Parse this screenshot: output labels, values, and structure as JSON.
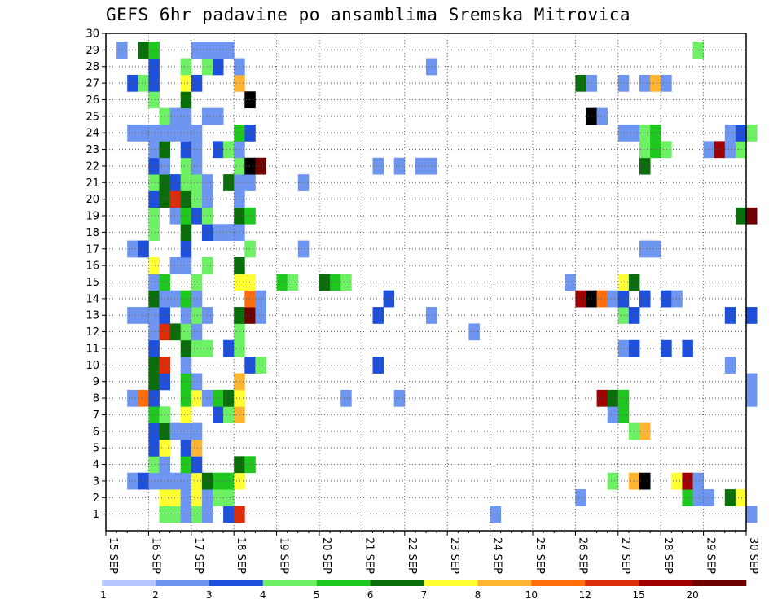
{
  "chart_data": {
    "type": "heatmap",
    "title": "GEFS 6hr padavine po ansamblima Sremska Mitrovica",
    "x_labels": [
      "15 SEP",
      "16 SEP",
      "17 SEP",
      "18 SEP",
      "19 SEP",
      "20 SEP",
      "21 SEP",
      "22 SEP",
      "23 SEP",
      "24 SEP",
      "25 SEP",
      "26 SEP",
      "27 SEP",
      "28 SEP",
      "29 SEP",
      "30 SEP"
    ],
    "y_labels": [
      "1",
      "2",
      "3",
      "4",
      "5",
      "6",
      "7",
      "8",
      "9",
      "10",
      "11",
      "12",
      "13",
      "14",
      "15",
      "16",
      "17",
      "18",
      "19",
      "20",
      "21",
      "22",
      "23",
      "24",
      "25",
      "26",
      "27",
      "28",
      "29",
      "30"
    ],
    "ylim": [
      0,
      30
    ],
    "grid": true,
    "time_steps_per_day": 4,
    "legend": {
      "placement": "bottom",
      "labels": [
        "1",
        "2",
        "3",
        "4",
        "5",
        "6",
        "7",
        "8",
        "10",
        "12",
        "15",
        "20"
      ],
      "colors": [
        "#b4c8ff",
        "#6e96f0",
        "#1e50dc",
        "#6ef064",
        "#1ec81e",
        "#0a6e0a",
        "#ffff32",
        "#ffb432",
        "#ff6e0a",
        "#dc2d0a",
        "#a00000",
        "#6e0000"
      ]
    },
    "cells": [
      [
        1,
        1.25,
        3
      ],
      [
        1,
        1.5,
        3
      ],
      [
        1,
        1.75,
        1
      ],
      [
        1,
        2,
        3
      ],
      [
        1,
        2.25,
        1
      ],
      [
        1,
        2.75,
        2
      ],
      [
        1,
        3,
        9
      ],
      [
        1,
        9,
        1
      ],
      [
        1,
        15,
        1
      ],
      [
        2,
        1.25,
        6
      ],
      [
        2,
        1.5,
        6
      ],
      [
        2,
        1.75,
        1
      ],
      [
        2,
        2,
        6
      ],
      [
        2,
        2.25,
        1
      ],
      [
        2,
        2.5,
        3
      ],
      [
        2,
        2.75,
        3
      ],
      [
        2,
        11,
        1
      ],
      [
        2,
        13.5,
        4
      ],
      [
        2,
        13.75,
        1
      ],
      [
        2,
        14,
        1
      ],
      [
        2,
        14.5,
        5
      ],
      [
        2,
        14.75,
        6
      ],
      [
        3,
        0.5,
        1
      ],
      [
        3,
        0.75,
        2
      ],
      [
        3,
        1,
        1
      ],
      [
        3,
        1.25,
        1
      ],
      [
        3,
        1.5,
        1
      ],
      [
        3,
        1.75,
        1
      ],
      [
        3,
        2,
        6
      ],
      [
        3,
        2.25,
        5
      ],
      [
        3,
        2.5,
        4
      ],
      [
        3,
        2.75,
        4
      ],
      [
        3,
        3,
        6
      ],
      [
        3,
        11.75,
        3
      ],
      [
        3,
        12.25,
        7
      ],
      [
        3,
        12.5,
        12
      ],
      [
        3,
        13.25,
        6
      ],
      [
        3,
        13.5,
        10
      ],
      [
        3,
        13.75,
        1
      ],
      [
        4,
        1,
        3
      ],
      [
        4,
        1.25,
        1
      ],
      [
        4,
        1.75,
        4
      ],
      [
        4,
        2,
        2
      ],
      [
        4,
        3,
        5
      ],
      [
        4,
        3.25,
        4
      ],
      [
        5,
        1,
        2
      ],
      [
        5,
        1.25,
        6
      ],
      [
        5,
        1.75,
        2
      ],
      [
        5,
        2,
        7
      ],
      [
        6,
        1,
        2
      ],
      [
        6,
        1.25,
        5
      ],
      [
        6,
        1.5,
        1
      ],
      [
        6,
        1.75,
        1
      ],
      [
        6,
        2,
        1
      ],
      [
        6,
        12.25,
        3
      ],
      [
        6,
        12.5,
        7
      ],
      [
        7,
        1,
        4
      ],
      [
        7,
        1.25,
        3
      ],
      [
        7,
        1.75,
        6
      ],
      [
        7,
        2.5,
        2
      ],
      [
        7,
        2.75,
        3
      ],
      [
        7,
        3,
        7
      ],
      [
        7,
        11.75,
        1
      ],
      [
        7,
        12,
        4
      ],
      [
        8,
        0.5,
        1
      ],
      [
        8,
        0.75,
        8
      ],
      [
        8,
        1,
        2
      ],
      [
        8,
        1.75,
        4
      ],
      [
        8,
        2,
        6
      ],
      [
        8,
        2.25,
        1
      ],
      [
        8,
        2.5,
        4
      ],
      [
        8,
        2.75,
        5
      ],
      [
        8,
        3,
        6
      ],
      [
        8,
        5.5,
        1
      ],
      [
        8,
        6.75,
        1
      ],
      [
        8,
        11.5,
        10
      ],
      [
        8,
        11.75,
        5
      ],
      [
        8,
        12,
        4
      ],
      [
        8,
        15,
        1
      ],
      [
        9,
        1,
        5
      ],
      [
        9,
        1.25,
        2
      ],
      [
        9,
        1.75,
        4
      ],
      [
        9,
        2,
        1
      ],
      [
        9,
        3,
        7
      ],
      [
        9,
        15,
        1
      ],
      [
        10,
        1,
        5
      ],
      [
        10,
        1.25,
        9
      ],
      [
        10,
        1.75,
        1
      ],
      [
        10,
        3.25,
        2
      ],
      [
        10,
        3.5,
        3
      ],
      [
        10,
        6.25,
        2
      ],
      [
        10,
        14.5,
        1
      ],
      [
        11,
        1,
        2
      ],
      [
        11,
        1.75,
        5
      ],
      [
        11,
        2,
        3
      ],
      [
        11,
        2.25,
        3
      ],
      [
        11,
        2.75,
        2
      ],
      [
        11,
        3,
        3
      ],
      [
        11,
        12,
        1
      ],
      [
        11,
        12.25,
        2
      ],
      [
        11,
        13,
        2
      ],
      [
        11,
        13.5,
        2
      ],
      [
        12,
        1,
        1
      ],
      [
        12,
        1.25,
        9
      ],
      [
        12,
        1.5,
        5
      ],
      [
        12,
        1.75,
        3
      ],
      [
        12,
        2,
        1
      ],
      [
        12,
        3,
        3
      ],
      [
        12,
        8.5,
        1
      ],
      [
        13,
        0.5,
        1
      ],
      [
        13,
        0.75,
        1
      ],
      [
        13,
        1,
        1
      ],
      [
        13,
        1.25,
        2
      ],
      [
        13,
        1.75,
        1
      ],
      [
        13,
        2,
        3
      ],
      [
        13,
        2.25,
        1
      ],
      [
        13,
        3,
        5
      ],
      [
        13,
        3.25,
        11
      ],
      [
        13,
        3.5,
        1
      ],
      [
        13,
        6.25,
        2
      ],
      [
        13,
        7.5,
        1
      ],
      [
        13,
        12,
        3
      ],
      [
        13,
        12.25,
        2
      ],
      [
        13,
        14.5,
        2
      ],
      [
        13,
        15,
        2
      ],
      [
        14,
        1,
        5
      ],
      [
        14,
        1.25,
        1
      ],
      [
        14,
        1.5,
        1
      ],
      [
        14,
        1.75,
        4
      ],
      [
        14,
        2,
        1
      ],
      [
        14,
        3.25,
        8
      ],
      [
        14,
        3.5,
        1
      ],
      [
        14,
        6.5,
        2
      ],
      [
        14,
        11,
        10
      ],
      [
        14,
        11.25,
        12
      ],
      [
        14,
        11.5,
        8
      ],
      [
        14,
        11.75,
        1
      ],
      [
        14,
        12,
        2
      ],
      [
        14,
        12.5,
        2
      ],
      [
        14,
        13,
        2
      ],
      [
        14,
        13.25,
        1
      ],
      [
        15,
        1,
        1
      ],
      [
        15,
        1.25,
        4
      ],
      [
        15,
        2,
        3
      ],
      [
        15,
        3,
        6
      ],
      [
        15,
        3.25,
        6
      ],
      [
        15,
        4,
        4
      ],
      [
        15,
        4.25,
        3
      ],
      [
        15,
        5,
        5
      ],
      [
        15,
        5.25,
        4
      ],
      [
        15,
        5.5,
        3
      ],
      [
        15,
        10.75,
        1
      ],
      [
        15,
        12,
        6
      ],
      [
        15,
        12.25,
        5
      ],
      [
        16,
        1,
        6
      ],
      [
        16,
        1.5,
        1
      ],
      [
        16,
        1.75,
        1
      ],
      [
        16,
        2.25,
        3
      ],
      [
        16,
        3,
        5
      ],
      [
        17,
        0.5,
        1
      ],
      [
        17,
        0.75,
        2
      ],
      [
        17,
        1.75,
        2
      ],
      [
        17,
        3.25,
        3
      ],
      [
        17,
        4.5,
        1
      ],
      [
        17,
        12.5,
        1
      ],
      [
        17,
        12.75,
        1
      ],
      [
        18,
        1,
        3
      ],
      [
        18,
        1.75,
        5
      ],
      [
        18,
        2.25,
        2
      ],
      [
        18,
        2.5,
        1
      ],
      [
        18,
        2.75,
        1
      ],
      [
        18,
        3,
        1
      ],
      [
        19,
        1,
        3
      ],
      [
        19,
        1.5,
        1
      ],
      [
        19,
        1.75,
        4
      ],
      [
        19,
        2,
        2
      ],
      [
        19,
        2.25,
        3
      ],
      [
        19,
        3,
        5
      ],
      [
        19,
        3.25,
        4
      ],
      [
        19,
        14.75,
        5
      ],
      [
        19,
        15,
        11
      ],
      [
        20,
        1,
        2
      ],
      [
        20,
        1.25,
        5
      ],
      [
        20,
        1.5,
        9
      ],
      [
        20,
        1.75,
        5
      ],
      [
        20,
        2,
        3
      ],
      [
        20,
        2.25,
        1
      ],
      [
        20,
        3,
        1
      ],
      [
        21,
        1,
        3
      ],
      [
        21,
        1.25,
        5
      ],
      [
        21,
        1.5,
        2
      ],
      [
        21,
        1.75,
        3
      ],
      [
        21,
        2,
        3
      ],
      [
        21,
        2.25,
        1
      ],
      [
        21,
        2.75,
        5
      ],
      [
        21,
        3,
        1
      ],
      [
        21,
        3.25,
        1
      ],
      [
        21,
        4.5,
        1
      ],
      [
        22,
        1,
        2
      ],
      [
        22,
        1.25,
        1
      ],
      [
        22,
        1.75,
        3
      ],
      [
        22,
        2,
        1
      ],
      [
        22,
        3,
        3
      ],
      [
        22,
        3.25,
        12
      ],
      [
        22,
        3.5,
        11
      ],
      [
        22,
        6.25,
        1
      ],
      [
        22,
        6.75,
        1
      ],
      [
        22,
        7.25,
        1
      ],
      [
        22,
        7.5,
        1
      ],
      [
        22,
        12.5,
        5
      ],
      [
        23,
        1,
        1
      ],
      [
        23,
        1.25,
        5
      ],
      [
        23,
        1.75,
        2
      ],
      [
        23,
        2,
        1
      ],
      [
        23,
        2.5,
        2
      ],
      [
        23,
        2.75,
        3
      ],
      [
        23,
        3,
        1
      ],
      [
        23,
        12.5,
        3
      ],
      [
        23,
        12.75,
        4
      ],
      [
        23,
        13,
        3
      ],
      [
        23,
        14,
        1
      ],
      [
        23,
        14.25,
        10
      ],
      [
        23,
        14.5,
        1
      ],
      [
        23,
        14.75,
        3
      ],
      [
        24,
        0.5,
        1
      ],
      [
        24,
        0.75,
        1
      ],
      [
        24,
        1,
        1
      ],
      [
        24,
        1.25,
        1
      ],
      [
        24,
        1.5,
        1
      ],
      [
        24,
        1.75,
        1
      ],
      [
        24,
        2,
        1
      ],
      [
        24,
        3,
        4
      ],
      [
        24,
        3.25,
        2
      ],
      [
        24,
        12,
        1
      ],
      [
        24,
        12.25,
        1
      ],
      [
        24,
        12.5,
        3
      ],
      [
        24,
        12.75,
        4
      ],
      [
        24,
        14.5,
        1
      ],
      [
        24,
        14.75,
        2
      ],
      [
        24,
        15,
        3
      ],
      [
        25,
        1.25,
        3
      ],
      [
        25,
        1.5,
        1
      ],
      [
        25,
        1.75,
        1
      ],
      [
        25,
        2.25,
        1
      ],
      [
        25,
        2.5,
        1
      ],
      [
        25,
        11.25,
        12
      ],
      [
        25,
        11.5,
        1
      ],
      [
        26,
        1,
        3
      ],
      [
        26,
        1.75,
        5
      ],
      [
        26,
        3.25,
        12
      ],
      [
        27,
        0.5,
        2
      ],
      [
        27,
        0.75,
        3
      ],
      [
        27,
        1,
        2
      ],
      [
        27,
        1.75,
        6
      ],
      [
        27,
        2,
        2
      ],
      [
        27,
        3,
        7
      ],
      [
        27,
        11,
        5
      ],
      [
        27,
        11.25,
        1
      ],
      [
        27,
        12,
        1
      ],
      [
        27,
        12.5,
        1
      ],
      [
        27,
        12.75,
        7
      ],
      [
        27,
        13,
        1
      ],
      [
        28,
        1,
        2
      ],
      [
        28,
        1.75,
        3
      ],
      [
        28,
        2.25,
        3
      ],
      [
        28,
        2.5,
        2
      ],
      [
        28,
        3,
        1
      ],
      [
        28,
        7.5,
        1
      ],
      [
        29,
        0.25,
        1
      ],
      [
        29,
        0.75,
        5
      ],
      [
        29,
        1,
        4
      ],
      [
        29,
        2,
        1
      ],
      [
        29,
        2.25,
        1
      ],
      [
        29,
        2.5,
        1
      ],
      [
        29,
        2.75,
        1
      ],
      [
        29,
        13.75,
        3
      ]
    ]
  }
}
